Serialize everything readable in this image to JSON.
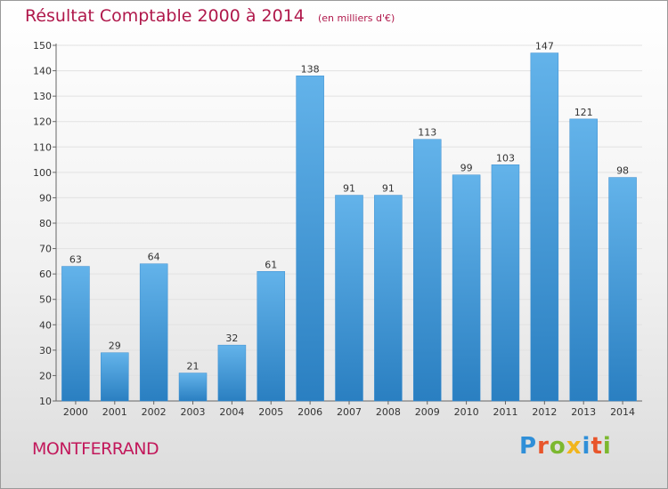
{
  "title": "Résultat Comptable 2000 à 2014",
  "unit_note": "(en milliers d'€)",
  "commune": "MONTFERRAND",
  "brand": {
    "text": "Proxiti",
    "letter_colors": [
      "#2f8fd8",
      "#e8552b",
      "#7cb82f",
      "#f1b51c",
      "#2f8fd8",
      "#e8552b",
      "#7cb82f"
    ]
  },
  "colors": {
    "title": "#b0184b",
    "bar_top": "#63b3ea",
    "bar_bottom": "#2a7fc1",
    "grid": "#e2e2e2"
  },
  "chart_data": {
    "type": "bar",
    "categories": [
      "2000",
      "2001",
      "2002",
      "2003",
      "2004",
      "2005",
      "2006",
      "2007",
      "2008",
      "2009",
      "2010",
      "2011",
      "2012",
      "2013",
      "2014"
    ],
    "values": [
      63,
      29,
      64,
      21,
      32,
      61,
      138,
      91,
      91,
      113,
      99,
      103,
      147,
      121,
      98
    ],
    "title": "Résultat Comptable 2000 à 2014",
    "ylim": [
      10,
      150
    ],
    "yticks": [
      10,
      20,
      30,
      40,
      50,
      60,
      70,
      80,
      90,
      100,
      110,
      120,
      130,
      140,
      150
    ],
    "grid": "horizontal",
    "data_labels": true
  }
}
